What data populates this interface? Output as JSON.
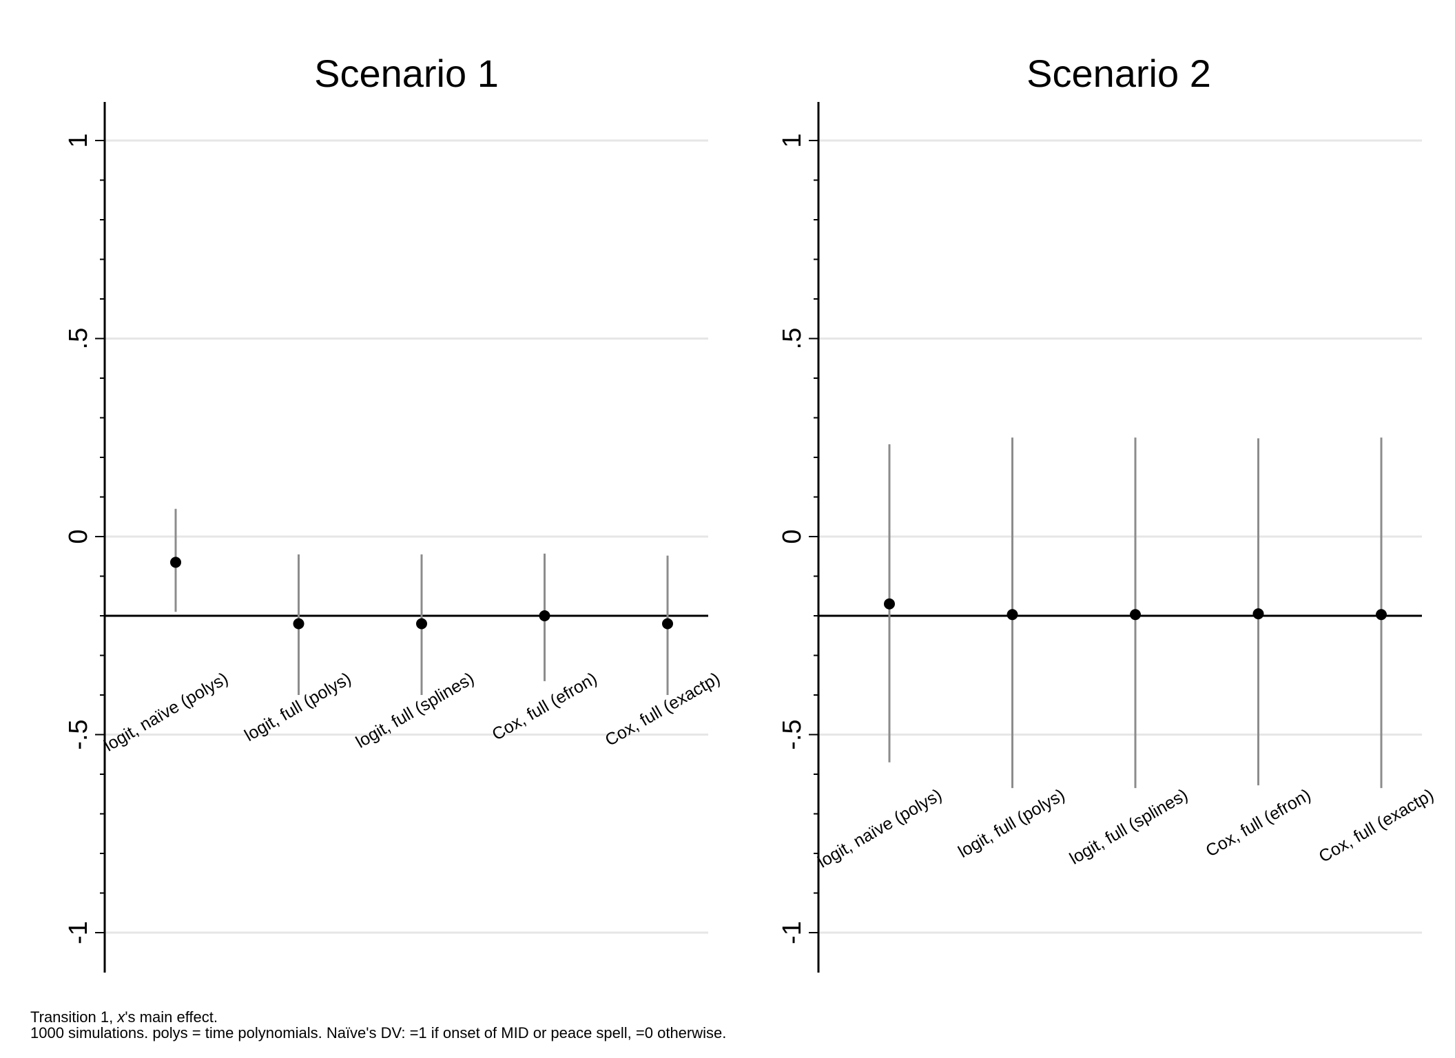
{
  "chart_data": [
    {
      "type": "scatter",
      "title": "Scenario 1",
      "ylim": [
        -1.1,
        1.1
      ],
      "yticks": [
        {
          "value": 1,
          "label": "1"
        },
        {
          "value": 0.5,
          "label": ".5"
        },
        {
          "value": 0,
          "label": "0"
        },
        {
          "value": -0.5,
          "label": "-.5"
        },
        {
          "value": -1,
          "label": "-1"
        }
      ],
      "grid": true,
      "reference_line": -0.2,
      "categories": [
        "logit, naïve (polys)",
        "logit, full (polys)",
        "logit, full (splines)",
        "Cox, full (efron)",
        "Cox, full (exactp)"
      ],
      "points": [
        {
          "estimate": -0.065,
          "low": -0.19,
          "high": 0.07
        },
        {
          "estimate": -0.22,
          "low": -0.4,
          "high": -0.045
        },
        {
          "estimate": -0.22,
          "low": -0.4,
          "high": -0.045
        },
        {
          "estimate": -0.2,
          "low": -0.365,
          "high": -0.043
        },
        {
          "estimate": -0.22,
          "low": -0.4,
          "high": -0.048
        }
      ]
    },
    {
      "type": "scatter",
      "title": "Scenario 2",
      "ylim": [
        -1.1,
        1.1
      ],
      "yticks": [
        {
          "value": 1,
          "label": "1"
        },
        {
          "value": 0.5,
          "label": ".5"
        },
        {
          "value": 0,
          "label": "0"
        },
        {
          "value": -0.5,
          "label": "-.5"
        },
        {
          "value": -1,
          "label": "-1"
        }
      ],
      "grid": true,
      "reference_line": -0.2,
      "categories": [
        "logit, naïve (polys)",
        "logit, full (polys)",
        "logit, full (splines)",
        "Cox, full (efron)",
        "Cox, full (exactp)"
      ],
      "points": [
        {
          "estimate": -0.17,
          "low": -0.57,
          "high": 0.233
        },
        {
          "estimate": -0.197,
          "low": -0.635,
          "high": 0.25
        },
        {
          "estimate": -0.197,
          "low": -0.635,
          "high": 0.25
        },
        {
          "estimate": -0.195,
          "low": -0.628,
          "high": 0.248
        },
        {
          "estimate": -0.197,
          "low": -0.635,
          "high": 0.25
        }
      ]
    }
  ],
  "notes": {
    "line1_pre": "Transition 1, ",
    "line1_italic": "x",
    "line1_post": "'s main effect.",
    "line2": "1000 simulations.  polys = time polynomials.  Naïve's DV: =1 if onset of MID or peace spell, =0 otherwise."
  },
  "colors": {
    "grid": "#e6e6e6",
    "axis": "#000000",
    "ci": "#8c8c8c",
    "point": "#000000",
    "reference": "#000000"
  }
}
